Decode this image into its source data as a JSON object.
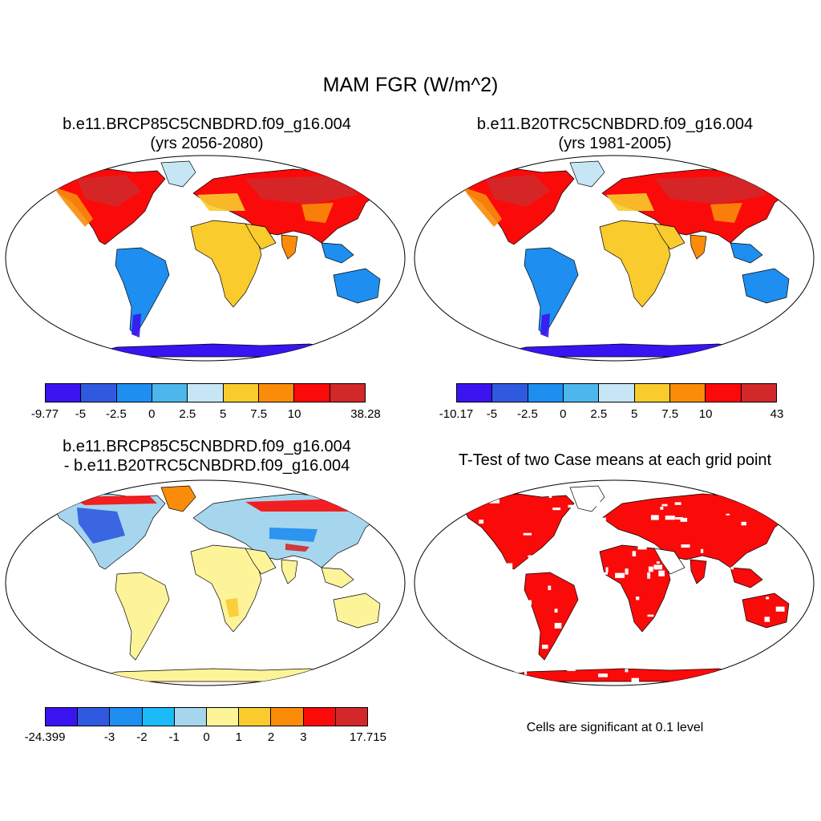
{
  "title": "MAM FGR (W/m^2)",
  "panels": [
    {
      "title_line1": "b.e11.BRCP85C5CNBDRD.f09_g16.004",
      "title_line2": "(yrs 2056-2080)",
      "colorbar": {
        "colors": [
          "#3a14f0",
          "#2f5ae0",
          "#1e8ef0",
          "#4db6ec",
          "#c6e6f6",
          "#f9cb2c",
          "#fa8c0a",
          "#fb0a0a",
          "#d2282a"
        ],
        "labels": [
          "-9.77",
          "-5",
          "-2.5",
          "0",
          "2.5",
          "5",
          "7.5",
          "10",
          "38.28"
        ],
        "label_positions": [
          0,
          1,
          2,
          3,
          4,
          5,
          6,
          7,
          9
        ]
      }
    },
    {
      "title_line1": "b.e11.B20TRC5CNBDRD.f09_g16.004",
      "title_line2": "(yrs 1981-2005)",
      "colorbar": {
        "colors": [
          "#3a14f0",
          "#2f5ae0",
          "#1e8ef0",
          "#4db6ec",
          "#c6e6f6",
          "#f9cb2c",
          "#fa8c0a",
          "#fb0a0a",
          "#d2282a"
        ],
        "labels": [
          "-10.17",
          "-5",
          "-2.5",
          "0",
          "2.5",
          "5",
          "7.5",
          "10",
          "43"
        ],
        "label_positions": [
          0,
          1,
          2,
          3,
          4,
          5,
          6,
          7,
          9
        ]
      }
    },
    {
      "title_line1": "b.e11.BRCP85C5CNBDRD.f09_g16.004",
      "title_line2": "- b.e11.B20TRC5CNBDRD.f09_g16.004",
      "colorbar": {
        "colors": [
          "#3a14f0",
          "#2f5ae0",
          "#1e8ef0",
          "#1cbaf6",
          "#a6d6ee",
          "#fdf49a",
          "#f9cb2c",
          "#fa8c0a",
          "#fb0a0a",
          "#d2282a"
        ],
        "labels": [
          "-24.399",
          "-3",
          "-2",
          "-1",
          "0",
          "1",
          "2",
          "3",
          "17.715"
        ],
        "label_positions": [
          0,
          2,
          3,
          4,
          5,
          6,
          7,
          8,
          10
        ]
      }
    },
    {
      "title_line1": "T-Test of two Case means at each grid point",
      "note": "Cells are significant at 0.1 level"
    }
  ],
  "map_colors": {
    "ocean": "#ffffff",
    "antarctica_warm": "#3a14f0",
    "significant": "#fb0a0a"
  }
}
